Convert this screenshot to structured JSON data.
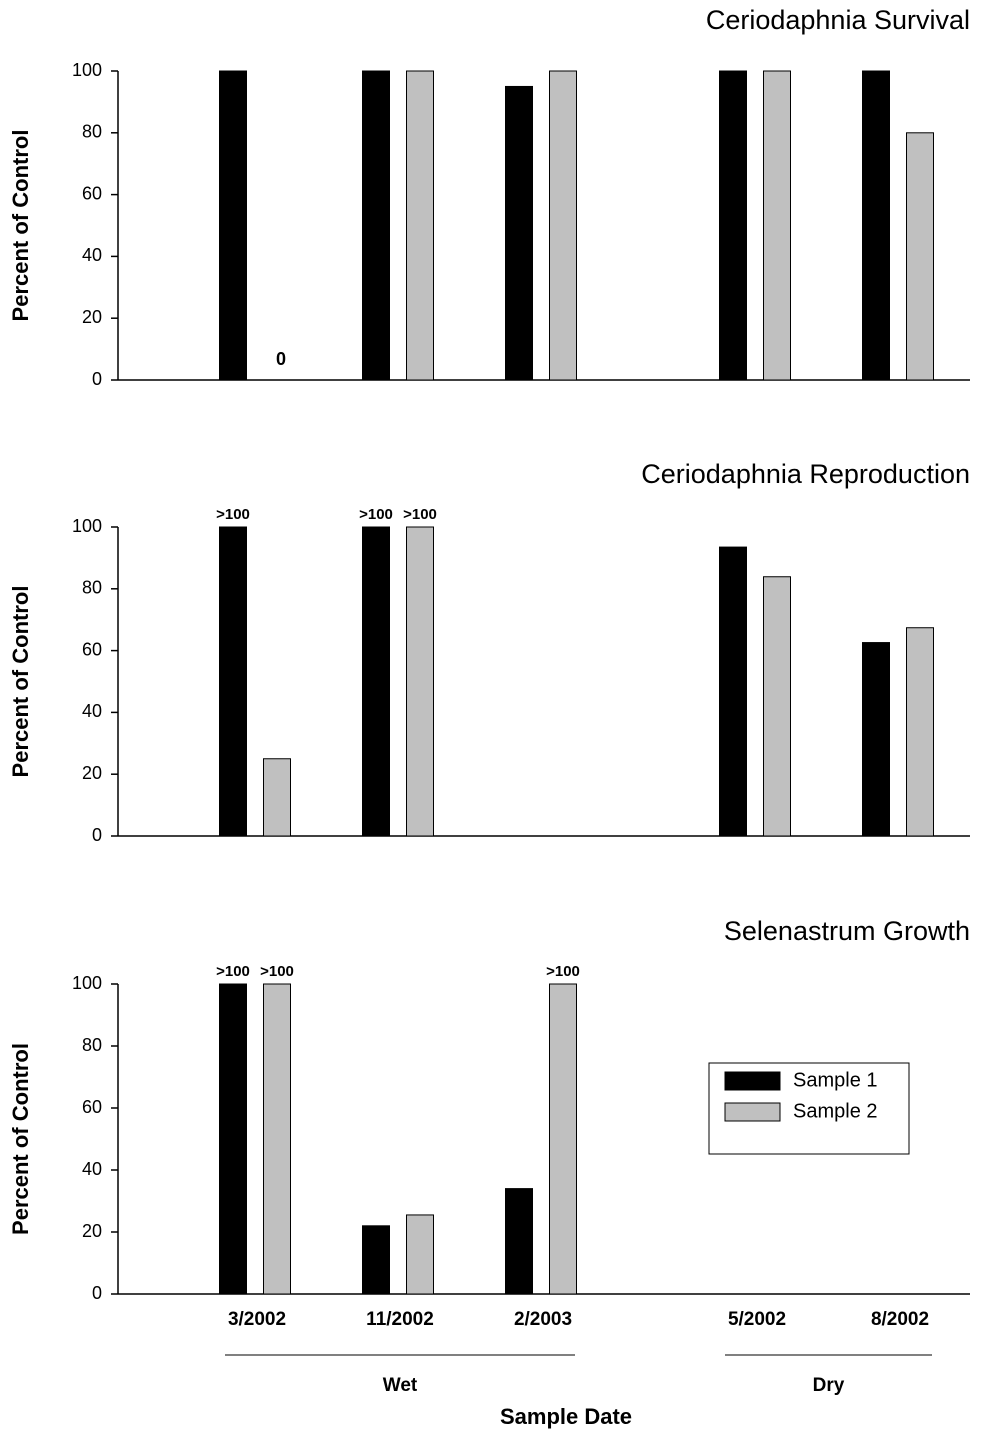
{
  "x_axis": {
    "categories": [
      "3/2002",
      "11/2002",
      "2/2003",
      "5/2002",
      "8/2002"
    ],
    "category_groups": [
      "Wet",
      "Wet",
      "Wet",
      "Dry",
      "Dry"
    ],
    "groups": [
      "Wet",
      "Dry"
    ],
    "xlabel": "Sample Date"
  },
  "chart_data": [
    {
      "type": "bar",
      "title": "Ceriodaphnia Survival",
      "ylabel": "Percent of Control",
      "ylim": [
        0,
        100
      ],
      "yticks": [
        0,
        20,
        40,
        60,
        80,
        100
      ],
      "series": [
        {
          "color": "#000000",
          "values": [
            100,
            100,
            95,
            100,
            100
          ]
        },
        {
          "color": "#c0c0c0",
          "values": [
            0,
            100,
            100,
            100,
            80
          ],
          "value_labels": [
            "0",
            null,
            null,
            null,
            null
          ]
        }
      ]
    },
    {
      "type": "bar",
      "title": "Ceriodaphnia Reproduction",
      "ylabel": "Percent of Control",
      "ylim": [
        0,
        100
      ],
      "yticks": [
        0,
        20,
        40,
        60,
        80,
        100
      ],
      "series": [
        {
          "color": "#000000",
          "values": [
            100,
            100,
            null,
            93.5,
            62.6
          ],
          "value_labels": [
            ">100",
            ">100",
            null,
            null,
            null
          ]
        },
        {
          "color": "#c0c0c0",
          "values": [
            25,
            100,
            null,
            83.9,
            67.4
          ],
          "value_labels": [
            null,
            ">100",
            null,
            null,
            null
          ]
        }
      ]
    },
    {
      "type": "bar",
      "title": "Selenastrum Growth",
      "ylabel": "Percent of Control",
      "ylim": [
        0,
        100
      ],
      "yticks": [
        0,
        20,
        40,
        60,
        80,
        100
      ],
      "legend": "right",
      "series": [
        {
          "name": "Sample 1",
          "color": "#000000",
          "values": [
            100,
            22,
            34,
            null,
            null
          ],
          "value_labels": [
            ">100",
            null,
            null,
            null,
            null
          ]
        },
        {
          "name": "Sample 2",
          "color": "#c0c0c0",
          "values": [
            100,
            25.5,
            100,
            null,
            null
          ],
          "value_labels": [
            ">100",
            null,
            ">100",
            null,
            null
          ]
        }
      ]
    }
  ]
}
